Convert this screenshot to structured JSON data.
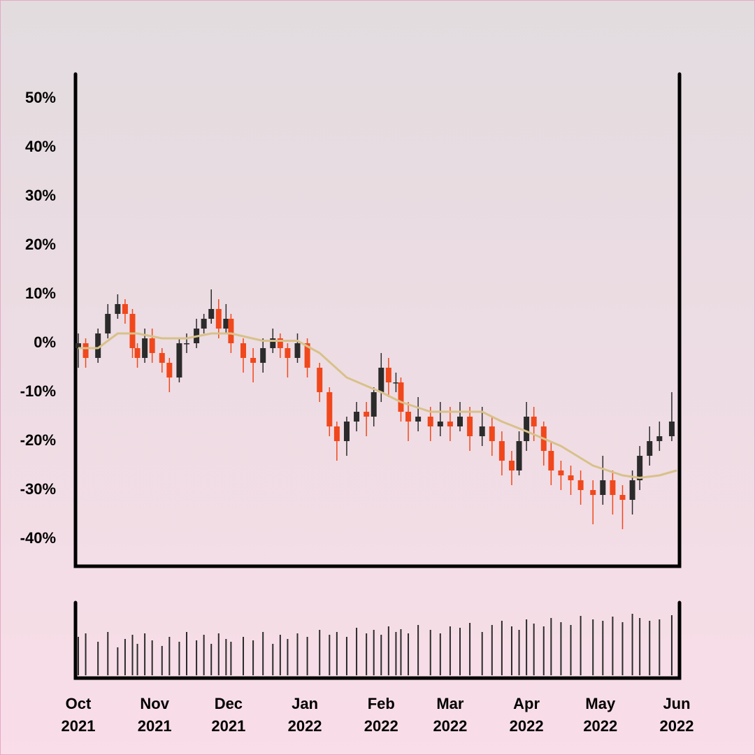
{
  "chart_data": {
    "type": "candlestick",
    "x": [
      0,
      3,
      8,
      12,
      16,
      19,
      22,
      24,
      27,
      30,
      34,
      37,
      41,
      44,
      48,
      51,
      54,
      57,
      60,
      62,
      67,
      71,
      75,
      79,
      82,
      85,
      89,
      93,
      98,
      102,
      105,
      109,
      113,
      117,
      120,
      123,
      126,
      129,
      131,
      134,
      138,
      143,
      147,
      151,
      155,
      159,
      164,
      168,
      172,
      176,
      179,
      182,
      185,
      189,
      192,
      196,
      200,
      204,
      209,
      213,
      217,
      221,
      225,
      228,
      232,
      236,
      241
    ],
    "open": [
      -1,
      0,
      -3,
      2,
      6,
      8,
      6,
      -1,
      -3,
      1,
      -2,
      -4,
      -7,
      0,
      0,
      3,
      5,
      7,
      3,
      5,
      0,
      -3,
      -4,
      -1,
      1,
      -1,
      -3,
      0,
      -5,
      -10,
      -17,
      -20,
      -16,
      -14,
      -15,
      -10,
      -5,
      -8,
      -8,
      -14,
      -16,
      -15,
      -17,
      -16,
      -17,
      -15,
      -19,
      -17,
      -20,
      -24,
      -26,
      -20,
      -15,
      -17,
      -22,
      -26,
      -27,
      -28,
      -30,
      -31,
      -28,
      -31,
      -32,
      -28,
      -23,
      -20,
      -19
    ],
    "high": [
      2,
      1,
      3,
      8,
      10,
      9,
      7,
      0,
      3,
      3,
      -1,
      -3,
      1,
      2,
      5,
      6,
      11,
      9,
      8,
      6,
      1,
      -1,
      1,
      3,
      2,
      0,
      2,
      1,
      -4,
      -9,
      -16,
      -15,
      -12,
      -12,
      -9,
      -2,
      -3,
      -6,
      -7,
      -12,
      -11,
      -13,
      -12,
      -13,
      -12,
      -13,
      -13,
      -15,
      -18,
      -22,
      -18,
      -12,
      -13,
      -16,
      -20,
      -24,
      -25,
      -26,
      -28,
      -23,
      -26,
      -29,
      -26,
      -21,
      -17,
      -16,
      -10
    ],
    "low": [
      -5,
      -5,
      -4,
      1,
      5,
      4,
      -3,
      -5,
      -4,
      -4,
      -6,
      -10,
      -8,
      -2,
      -1,
      2,
      4,
      1,
      2,
      -2,
      -6,
      -8,
      -6,
      -2,
      -3,
      -7,
      -4,
      -7,
      -12,
      -19,
      -24,
      -23,
      -18,
      -19,
      -17,
      -12,
      -11,
      -10,
      -16,
      -20,
      -18,
      -20,
      -19,
      -20,
      -18,
      -22,
      -21,
      -23,
      -27,
      -29,
      -27,
      -22,
      -20,
      -25,
      -29,
      -30,
      -31,
      -33,
      -37,
      -33,
      -35,
      -38,
      -35,
      -30,
      -25,
      -22,
      -20
    ],
    "close": [
      0,
      -3,
      2,
      6,
      8,
      6,
      -1,
      -3,
      1,
      -2,
      -4,
      -7,
      0,
      0,
      3,
      5,
      7,
      3,
      5,
      0,
      -3,
      -4,
      -1,
      1,
      -1,
      -3,
      0,
      -5,
      -10,
      -17,
      -20,
      -16,
      -14,
      -15,
      -10,
      -5,
      -8,
      -8,
      -14,
      -16,
      -15,
      -17,
      -16,
      -17,
      -15,
      -19,
      -17,
      -20,
      -24,
      -26,
      -20,
      -15,
      -17,
      -22,
      -26,
      -27,
      -28,
      -30,
      -31,
      -28,
      -31,
      -32,
      -28,
      -23,
      -20,
      -19,
      -16
    ],
    "up_color": "#2b2b2b",
    "down_color": "#f0481c",
    "moving_average": {
      "color": "#d8c18a",
      "x": [
        0,
        8,
        16,
        24,
        34,
        44,
        54,
        62,
        75,
        89,
        98,
        109,
        123,
        131,
        143,
        155,
        164,
        172,
        182,
        196,
        209,
        221,
        228,
        236,
        243
      ],
      "values": [
        -1,
        -1,
        2,
        2,
        1,
        1,
        2,
        2,
        0.5,
        0.5,
        -2,
        -7,
        -10,
        -12,
        -14,
        -14,
        -14,
        -16,
        -18,
        -21,
        -25,
        -27,
        -27.5,
        -27,
        -26
      ]
    },
    "volume": {
      "color": "#2b2b2b",
      "ylim": [
        0,
        100
      ],
      "values": [
        55,
        60,
        48,
        62,
        40,
        52,
        58,
        45,
        60,
        50,
        42,
        55,
        48,
        62,
        50,
        58,
        45,
        60,
        52,
        48,
        55,
        50,
        62,
        45,
        58,
        52,
        60,
        55,
        65,
        58,
        62,
        55,
        68,
        60,
        65,
        58,
        70,
        62,
        66,
        60,
        72,
        65,
        60,
        70,
        68,
        75,
        62,
        72,
        78,
        70,
        65,
        80,
        74,
        70,
        82,
        76,
        72,
        85,
        80,
        78,
        84,
        76,
        88,
        82,
        78,
        80,
        86
      ]
    },
    "xlim": [
      0,
      243
    ],
    "xticks": [
      {
        "value": 0,
        "label": "Oct\n2021"
      },
      {
        "value": 31,
        "label": "Nov\n2021"
      },
      {
        "value": 61,
        "label": "Dec\n2021"
      },
      {
        "value": 92,
        "label": "Jan\n2022"
      },
      {
        "value": 123,
        "label": "Feb\n2022"
      },
      {
        "value": 151,
        "label": "Mar\n2022"
      },
      {
        "value": 182,
        "label": "Apr\n2022"
      },
      {
        "value": 212,
        "label": "May\n2022"
      },
      {
        "value": 243,
        "label": "Jun\n2022"
      }
    ],
    "ylim": [
      -45,
      55
    ],
    "yticks": [
      {
        "value": 50,
        "label": "50%"
      },
      {
        "value": 40,
        "label": "40%"
      },
      {
        "value": 30,
        "label": "30%"
      },
      {
        "value": 20,
        "label": "20%"
      },
      {
        "value": 10,
        "label": "10%"
      },
      {
        "value": 0,
        "label": "0%"
      },
      {
        "value": -10,
        "label": "-10%"
      },
      {
        "value": -20,
        "label": "-20%"
      },
      {
        "value": -30,
        "label": "-30%"
      },
      {
        "value": -40,
        "label": "-40%"
      }
    ]
  }
}
